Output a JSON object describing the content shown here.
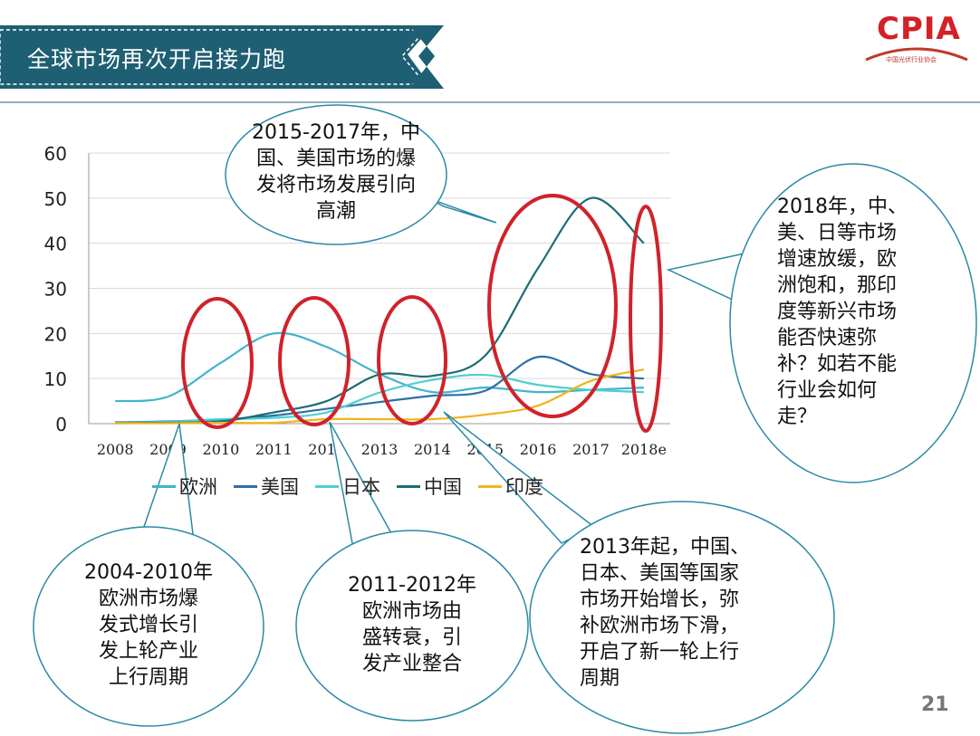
{
  "header": {
    "title": "全球市场再次开启接力跑"
  },
  "logo": {
    "name": "CPIA",
    "subtitle": "中国光伏行业协会"
  },
  "page_number": "21",
  "colors": {
    "banner": "#1e5f73",
    "highlight_ellipse": "#d0222a",
    "callout_border": "#2a8aa5",
    "axis": "#999999",
    "grid": "#d9d9d9"
  },
  "chart_data": {
    "type": "line",
    "categories": [
      "2008",
      "2009",
      "2010",
      "2011",
      "2012",
      "2013",
      "2014",
      "2015",
      "2016",
      "2017",
      "2018e"
    ],
    "ylim": [
      0,
      60
    ],
    "yticks": [
      "0",
      "10",
      "20",
      "30",
      "40",
      "50",
      "60"
    ],
    "grid": true,
    "legend_position": "bottom",
    "series": [
      {
        "name": "欧洲",
        "color": "#40b4cc",
        "values": [
          5,
          6,
          13.5,
          20,
          17,
          11,
          7,
          8,
          7,
          7.5,
          8
        ]
      },
      {
        "name": "美国",
        "color": "#2e6fa8",
        "values": [
          0.3,
          0.5,
          0.9,
          1.8,
          3.3,
          4.8,
          6.2,
          7.3,
          14.8,
          11,
          10
        ]
      },
      {
        "name": "日本",
        "color": "#4fcfd0",
        "values": [
          0.2,
          0.4,
          1,
          1.3,
          2.5,
          6.9,
          9.7,
          10.8,
          8.6,
          7.5,
          7
        ]
      },
      {
        "name": "中国",
        "color": "#1a6e72",
        "values": [
          0.1,
          0.2,
          0.5,
          2.5,
          5,
          10.9,
          10.6,
          15.1,
          34.5,
          50,
          40
        ]
      },
      {
        "name": "印度",
        "color": "#f2b31b",
        "values": [
          0.1,
          0.1,
          0.2,
          0.2,
          1,
          1,
          1,
          2,
          4,
          9.5,
          12
        ]
      }
    ]
  },
  "callouts": {
    "top": "2015-2017年，中\n国、美国市场的爆\n发将市场发展引向\n高潮",
    "right": "2018年，中、\n美、日等市场\n增速放缓，欧\n洲饱和，那印\n度等新兴市场\n能否快速弥\n补？如若不能\n行业会如何\n走？",
    "bottom_left": "2004-2010年\n欧洲市场爆\n发式增长引\n发上轮产业\n上行周期",
    "bottom_mid": "2011-2012年\n欧洲市场由\n盛转衰，引\n发产业整合",
    "bottom_right": "2013年起，中国、\n日本、美国等国家\n市场开始增长，弥\n补欧洲市场下滑，\n开启了新一轮上行\n周期"
  }
}
